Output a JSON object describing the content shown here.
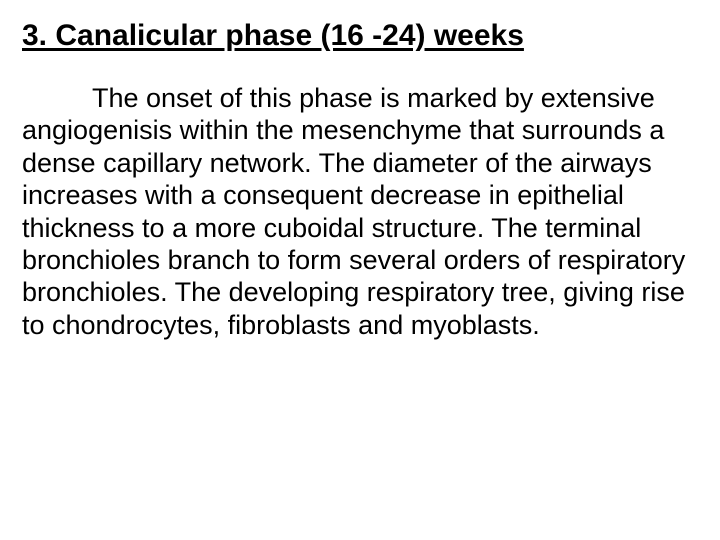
{
  "slide": {
    "heading": "3. Canalicular phase (16 -24) weeks",
    "body": "The onset of this phase is marked by extensive angiogenisis within the mesenchyme that surrounds a dense capillary network. The diameter of the airways increases with a consequent decrease in epithelial thickness to a more cuboidal structure. The terminal bronchioles branch to form several orders of respiratory bronchioles. The developing respiratory tree, giving rise to chondrocytes, fibroblasts and myoblasts.",
    "heading_fontsize": 30,
    "body_fontsize": 27,
    "text_color": "#000000",
    "background_color": "#ffffff",
    "font_family": "Arial"
  }
}
